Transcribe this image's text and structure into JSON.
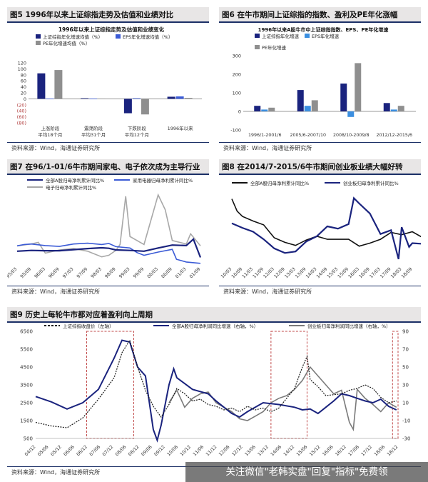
{
  "watermark": "关注微信\"老韩实盘\"回复\"指标\"免费领",
  "colors": {
    "navy": "#1a237e",
    "blue": "#3b5bd6",
    "gray": "#8f8f8f",
    "dark": "#111111",
    "red": "#b03a3a",
    "header_bg": "#e8e6e6",
    "rule": "#1b2f66"
  },
  "panels": [
    {
      "id": "fig5",
      "title": "图5  1996年以来上证综指走势及估值和业绩对比",
      "source": "资料来源：Wind，海通证券研究所"
    },
    {
      "id": "fig6",
      "title": "图6  在牛市期间上证综指的指数、盈利及PE年化涨幅",
      "source": "资料来源：Wind，海通证券研究所"
    },
    {
      "id": "fig7",
      "title": "图7  在96/1-01/6牛市期间家电、电子依次成为主导行业",
      "source": "资料来源：Wind，海通证券研究所"
    },
    {
      "id": "fig8",
      "title": "图8  在2014/7-2015/6牛市期间创业板业绩大幅好转",
      "source": "资料来源：Wind，海通证券研究所"
    },
    {
      "id": "fig9",
      "title": "图9  历史上每轮牛市都对应着盈利向上周期",
      "source": "资料来源：Wind，海通证券研究所"
    }
  ],
  "chart_data": [
    {
      "id": "fig5",
      "type": "bar",
      "title": "1996年以来上证综指走势及估值和业绩变化",
      "categories": [
        "上涨阶段\n平均18个月",
        "震荡阶段\n平均31个月",
        "下跌阶段\n平均12个月",
        "1996年以来"
      ],
      "series": [
        {
          "name": "上证综指年化增速均值（%）",
          "color": "#1a237e",
          "values": [
            85,
            2,
            -48,
            7
          ]
        },
        {
          "name": "EPS年化增速均值（%）",
          "color": "#3b5bd6",
          "values": [
            1,
            1,
            2,
            8
          ]
        },
        {
          "name": "PE年化增速均值（%）",
          "color": "#8f8f8f",
          "values": [
            96,
            1,
            -52,
            3
          ]
        }
      ],
      "ylim": [
        -80,
        120
      ],
      "yticks": [
        -80,
        -60,
        -40,
        -20,
        0,
        20,
        40,
        60,
        80,
        100,
        120
      ],
      "ytick_labels": [
        "(80)",
        "(60)",
        "(40)",
        "(20)",
        "0",
        "20",
        "40",
        "60",
        "80",
        "100",
        "120"
      ]
    },
    {
      "id": "fig6",
      "type": "bar",
      "title": "1996年以来A股牛市中上证综指指数、EPS、PE年化增速",
      "categories": [
        "1996/1-2001/6",
        "2005/6-2007/10",
        "2008/10-2009/8",
        "2012/12-2015/6"
      ],
      "series": [
        {
          "name": "上证综指年化增速",
          "color": "#1a237e",
          "values": [
            30,
            115,
            150,
            45
          ]
        },
        {
          "name": "EPS年化增速",
          "color": "#3b8fe0",
          "values": [
            10,
            30,
            -30,
            10
          ]
        },
        {
          "name": "PE年化增速",
          "color": "#8f8f8f",
          "values": [
            20,
            60,
            260,
            30
          ]
        }
      ],
      "ylim": [
        -100,
        300
      ],
      "yticks": [
        -100,
        0,
        100,
        200,
        300
      ]
    },
    {
      "id": "fig7",
      "type": "line",
      "x": [
        "95/03",
        "95/09",
        "96/03",
        "96/09",
        "97/03",
        "97/09",
        "98/03",
        "98/09",
        "99/03",
        "99/09",
        "00/03",
        "00/09",
        "01/03",
        "01/09"
      ],
      "ylim": [
        -50,
        200
      ],
      "yticks": [
        -50,
        0,
        50,
        100,
        150,
        200
      ],
      "series": [
        {
          "name": "全部A股归母净利累计同比%",
          "color": "#1a237e",
          "width": 2.2,
          "values": [
            [
              0,
              -15
            ],
            [
              1,
              -12
            ],
            [
              2,
              -13
            ],
            [
              3,
              -13
            ],
            [
              4,
              -9
            ],
            [
              5,
              -5
            ],
            [
              6,
              -2
            ],
            [
              6.5,
              -4
            ],
            [
              7,
              -10
            ],
            [
              8,
              -12
            ],
            [
              9,
              -15
            ],
            [
              10,
              -3
            ],
            [
              11,
              8
            ],
            [
              12,
              6
            ],
            [
              12.5,
              30
            ],
            [
              13,
              -38
            ]
          ]
        },
        {
          "name": "家用电器归母净利累计同比%",
          "color": "#3b5bd6",
          "width": 1.6,
          "values": [
            [
              0,
              5
            ],
            [
              0.5,
              10
            ],
            [
              1,
              12
            ],
            [
              2,
              6
            ],
            [
              3,
              3
            ],
            [
              4,
              12
            ],
            [
              5,
              15
            ],
            [
              6,
              10
            ],
            [
              6.5,
              14
            ],
            [
              7,
              2
            ],
            [
              8,
              -3
            ],
            [
              8.5,
              -20
            ],
            [
              9,
              -30
            ],
            [
              10,
              -18
            ],
            [
              11,
              -8
            ],
            [
              11.3,
              -45
            ],
            [
              12,
              -55
            ],
            [
              13,
              -60
            ]
          ]
        },
        {
          "name": "电子归母净利累计同比%",
          "color": "#a8a8a8",
          "width": 1.6,
          "values": [
            [
              0,
              5
            ],
            [
              1,
              12
            ],
            [
              1.5,
              18
            ],
            [
              2,
              -22
            ],
            [
              3,
              -10
            ],
            [
              4,
              -5
            ],
            [
              5,
              -15
            ],
            [
              6,
              -36
            ],
            [
              6.5,
              -30
            ],
            [
              7,
              -12
            ],
            [
              7.3,
              10
            ],
            [
              7.7,
              190
            ],
            [
              8,
              40
            ],
            [
              9,
              10
            ],
            [
              10,
              195
            ],
            [
              10.5,
              140
            ],
            [
              11,
              25
            ],
            [
              12,
              12
            ],
            [
              12.3,
              50
            ],
            [
              13,
              5
            ]
          ]
        }
      ]
    },
    {
      "id": "fig8",
      "type": "line",
      "x": [
        "10/03",
        "10/09",
        "11/03",
        "11/09",
        "12/03",
        "12/09",
        "13/03",
        "13/09",
        "14/03",
        "14/09",
        "15/03",
        "15/09",
        "16/03",
        "16/09",
        "17/03",
        "17/09",
        "18/03",
        "18/09"
      ],
      "ylim": [
        -20,
        70
      ],
      "yticks": [
        -20,
        -10,
        0,
        10,
        20,
        30,
        40,
        50,
        60,
        70
      ],
      "series": [
        {
          "name": "全部A股归母净利累计同比%",
          "color": "#111111",
          "width": 1.6,
          "values": [
            [
              0,
              61
            ],
            [
              0.5,
              45
            ],
            [
              1,
              38
            ],
            [
              2,
              32
            ],
            [
              3,
              27
            ],
            [
              4,
              10
            ],
            [
              5,
              4
            ],
            [
              6,
              0
            ],
            [
              7,
              7
            ],
            [
              8,
              12
            ],
            [
              9,
              8
            ],
            [
              10,
              8
            ],
            [
              11,
              8
            ],
            [
              12,
              -1
            ],
            [
              13,
              3
            ],
            [
              14,
              8
            ],
            [
              15,
              17
            ],
            [
              16,
              14
            ],
            [
              17,
              18
            ],
            [
              18,
              10
            ]
          ]
        },
        {
          "name": "创业板归母净利累计同比%",
          "color": "#1a237e",
          "width": 2.2,
          "values": [
            [
              0,
              29
            ],
            [
              1,
              23
            ],
            [
              2,
              18
            ],
            [
              3,
              8
            ],
            [
              4,
              -4
            ],
            [
              5,
              -10
            ],
            [
              6,
              -8
            ],
            [
              7,
              5
            ],
            [
              8,
              12
            ],
            [
              9,
              25
            ],
            [
              10,
              22
            ],
            [
              11,
              28
            ],
            [
              11.5,
              62
            ],
            [
              12,
              55
            ],
            [
              13,
              42
            ],
            [
              14,
              15
            ],
            [
              15,
              20
            ],
            [
              15.7,
              -18
            ],
            [
              16,
              24
            ],
            [
              16.7,
              -2
            ],
            [
              17,
              3
            ],
            [
              18,
              2
            ]
          ]
        }
      ]
    },
    {
      "id": "fig9",
      "type": "line",
      "x": [
        "04/12",
        "05/06",
        "05/12",
        "06/06",
        "06/12",
        "07/06",
        "07/12",
        "08/06",
        "08/12",
        "09/06",
        "09/12",
        "10/06",
        "10/12",
        "11/06",
        "11/12",
        "12/06",
        "12/12",
        "13/06",
        "13/12",
        "14/06",
        "14/12",
        "15/06",
        "15/12",
        "16/06",
        "16/12",
        "17/06",
        "17/12",
        "18/06",
        "18/12"
      ],
      "ylim_left": [
        500,
        6500
      ],
      "yticks_left": [
        500,
        1500,
        2500,
        3500,
        4500,
        5500,
        6500
      ],
      "ylim_right": [
        -30,
        90
      ],
      "yticks_right": [
        -30,
        -10,
        10,
        30,
        50,
        70,
        90
      ],
      "series": [
        {
          "name": "上证综指收盘价（左轴）",
          "axis": "left",
          "color": "#1a1a1a",
          "dashed": true,
          "values": [
            [
              0,
              1400
            ],
            [
              2,
              1200
            ],
            [
              4,
              1100
            ],
            [
              6,
              1650
            ],
            [
              8,
              2700
            ],
            [
              10,
              3900
            ],
            [
              11,
              5300
            ],
            [
              12,
              6000
            ],
            [
              13,
              4500
            ],
            [
              14,
              3200
            ],
            [
              15,
              2300
            ],
            [
              16,
              1700
            ],
            [
              17,
              2400
            ],
            [
              18,
              3300
            ],
            [
              19,
              3000
            ],
            [
              20,
              2600
            ],
            [
              21,
              2700
            ],
            [
              22,
              2400
            ],
            [
              23,
              2300
            ],
            [
              24,
              2100
            ],
            [
              25,
              2200
            ],
            [
              26,
              2000
            ],
            [
              27,
              2300
            ],
            [
              28,
              2100
            ],
            [
              29,
              2200
            ],
            [
              30,
              2000
            ],
            [
              31,
              2200
            ],
            [
              33,
              3300
            ],
            [
              34,
              4500
            ],
            [
              34.6,
              5100
            ],
            [
              35,
              3800
            ],
            [
              36,
              3400
            ],
            [
              37,
              2900
            ],
            [
              39,
              3000
            ],
            [
              40,
              3200
            ],
            [
              41,
              3300
            ],
            [
              42,
              3500
            ],
            [
              43,
              3300
            ],
            [
              44,
              2800
            ],
            [
              45,
              2500
            ],
            [
              46,
              2600
            ]
          ]
        },
        {
          "name": "全部A股归母净利润同比增速（右轴，%）",
          "axis": "right",
          "color": "#1a237e",
          "width": 2.0,
          "values": [
            [
              0,
              17
            ],
            [
              2,
              11
            ],
            [
              4,
              3
            ],
            [
              6,
              10
            ],
            [
              8,
              25
            ],
            [
              10,
              60
            ],
            [
              11,
              80
            ],
            [
              12,
              78
            ],
            [
              13,
              50
            ],
            [
              14,
              40
            ],
            [
              15,
              -20
            ],
            [
              15.5,
              -32
            ],
            [
              16,
              -15
            ],
            [
              17,
              30
            ],
            [
              17.6,
              48
            ],
            [
              18,
              38
            ],
            [
              20,
              25
            ],
            [
              22,
              20
            ],
            [
              23,
              12
            ],
            [
              24,
              5
            ],
            [
              25,
              -2
            ],
            [
              26,
              -6
            ],
            [
              27,
              0
            ],
            [
              28,
              5
            ],
            [
              29,
              10
            ],
            [
              30,
              9
            ],
            [
              31,
              8
            ],
            [
              33,
              5
            ],
            [
              34,
              2
            ],
            [
              35,
              3
            ],
            [
              36,
              -2
            ],
            [
              37,
              5
            ],
            [
              38,
              12
            ],
            [
              39,
              20
            ],
            [
              40,
              18
            ],
            [
              41,
              15
            ],
            [
              42,
              12
            ],
            [
              43,
              10
            ],
            [
              44,
              14
            ],
            [
              45,
              6
            ],
            [
              46,
              2
            ]
          ]
        },
        {
          "name": "创业板归母净利润同比增速（右轴，%）",
          "axis": "right",
          "color": "#7a7a7a",
          "width": 1.6,
          "values": [
            [
              17,
              10
            ],
            [
              18,
              24
            ],
            [
              19,
              5
            ],
            [
              20,
              15
            ],
            [
              21,
              20
            ],
            [
              22,
              22
            ],
            [
              23,
              10
            ],
            [
              24,
              5
            ],
            [
              25,
              0
            ],
            [
              26,
              -8
            ],
            [
              27,
              -10
            ],
            [
              28,
              -5
            ],
            [
              29,
              0
            ],
            [
              30,
              10
            ],
            [
              31,
              15
            ],
            [
              32,
              18
            ],
            [
              33,
              25
            ],
            [
              34,
              35
            ],
            [
              35,
              50
            ],
            [
              36,
              40
            ],
            [
              37,
              30
            ],
            [
              38,
              20
            ],
            [
              39,
              24
            ],
            [
              40,
              -12
            ],
            [
              40.5,
              -20
            ],
            [
              41,
              25
            ],
            [
              42,
              15
            ],
            [
              43,
              8
            ],
            [
              44,
              0
            ],
            [
              45,
              10
            ],
            [
              46,
              5
            ]
          ]
        }
      ],
      "highlight_periods": [
        [
          6.5,
          12.5
        ],
        [
          30.0,
          34.6
        ],
        [
          45.5,
          46.2
        ]
      ]
    }
  ]
}
